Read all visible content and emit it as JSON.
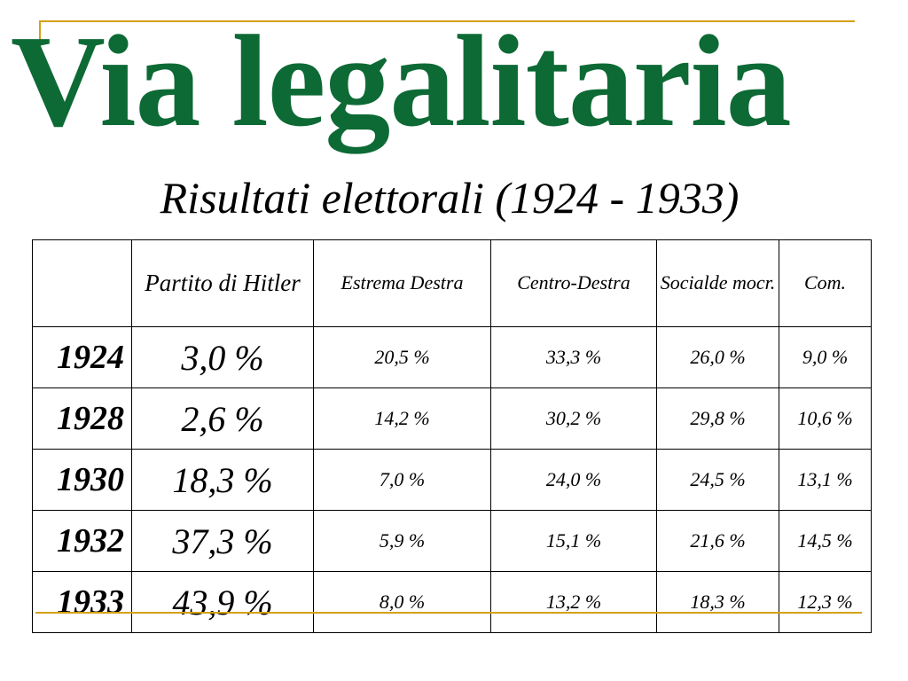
{
  "title": "Via legalitaria",
  "subtitle": "Risultati elettorali (1924 - 1933)",
  "colors": {
    "title": "#0d6a35",
    "accent": "#d4a017"
  },
  "table": {
    "headers": [
      "",
      "Partito di Hitler",
      "Estrema Destra",
      "Centro-Destra",
      "Socialde mocr.",
      "Com."
    ],
    "rows": [
      {
        "year": "1924",
        "hitler": "3,0 %",
        "estrema": "20,5 %",
        "centro": "33,3 %",
        "social": "26,0 %",
        "com": "9,0 %"
      },
      {
        "year": "1928",
        "hitler": "2,6 %",
        "estrema": "14,2 %",
        "centro": "30,2 %",
        "social": "29,8 %",
        "com": "10,6 %"
      },
      {
        "year": "1930",
        "hitler": "18,3 %",
        "estrema": "7,0 %",
        "centro": "24,0 %",
        "social": "24,5 %",
        "com": "13,1 %"
      },
      {
        "year": "1932",
        "hitler": "37,3 %",
        "estrema": "5,9 %",
        "centro": "15,1 %",
        "social": "21,6 %",
        "com": "14,5 %"
      },
      {
        "year": "1933",
        "hitler": "43,9 %",
        "estrema": "8,0 %",
        "centro": "13,2 %",
        "social": "18,3 %",
        "com": "12,3 %"
      }
    ]
  }
}
